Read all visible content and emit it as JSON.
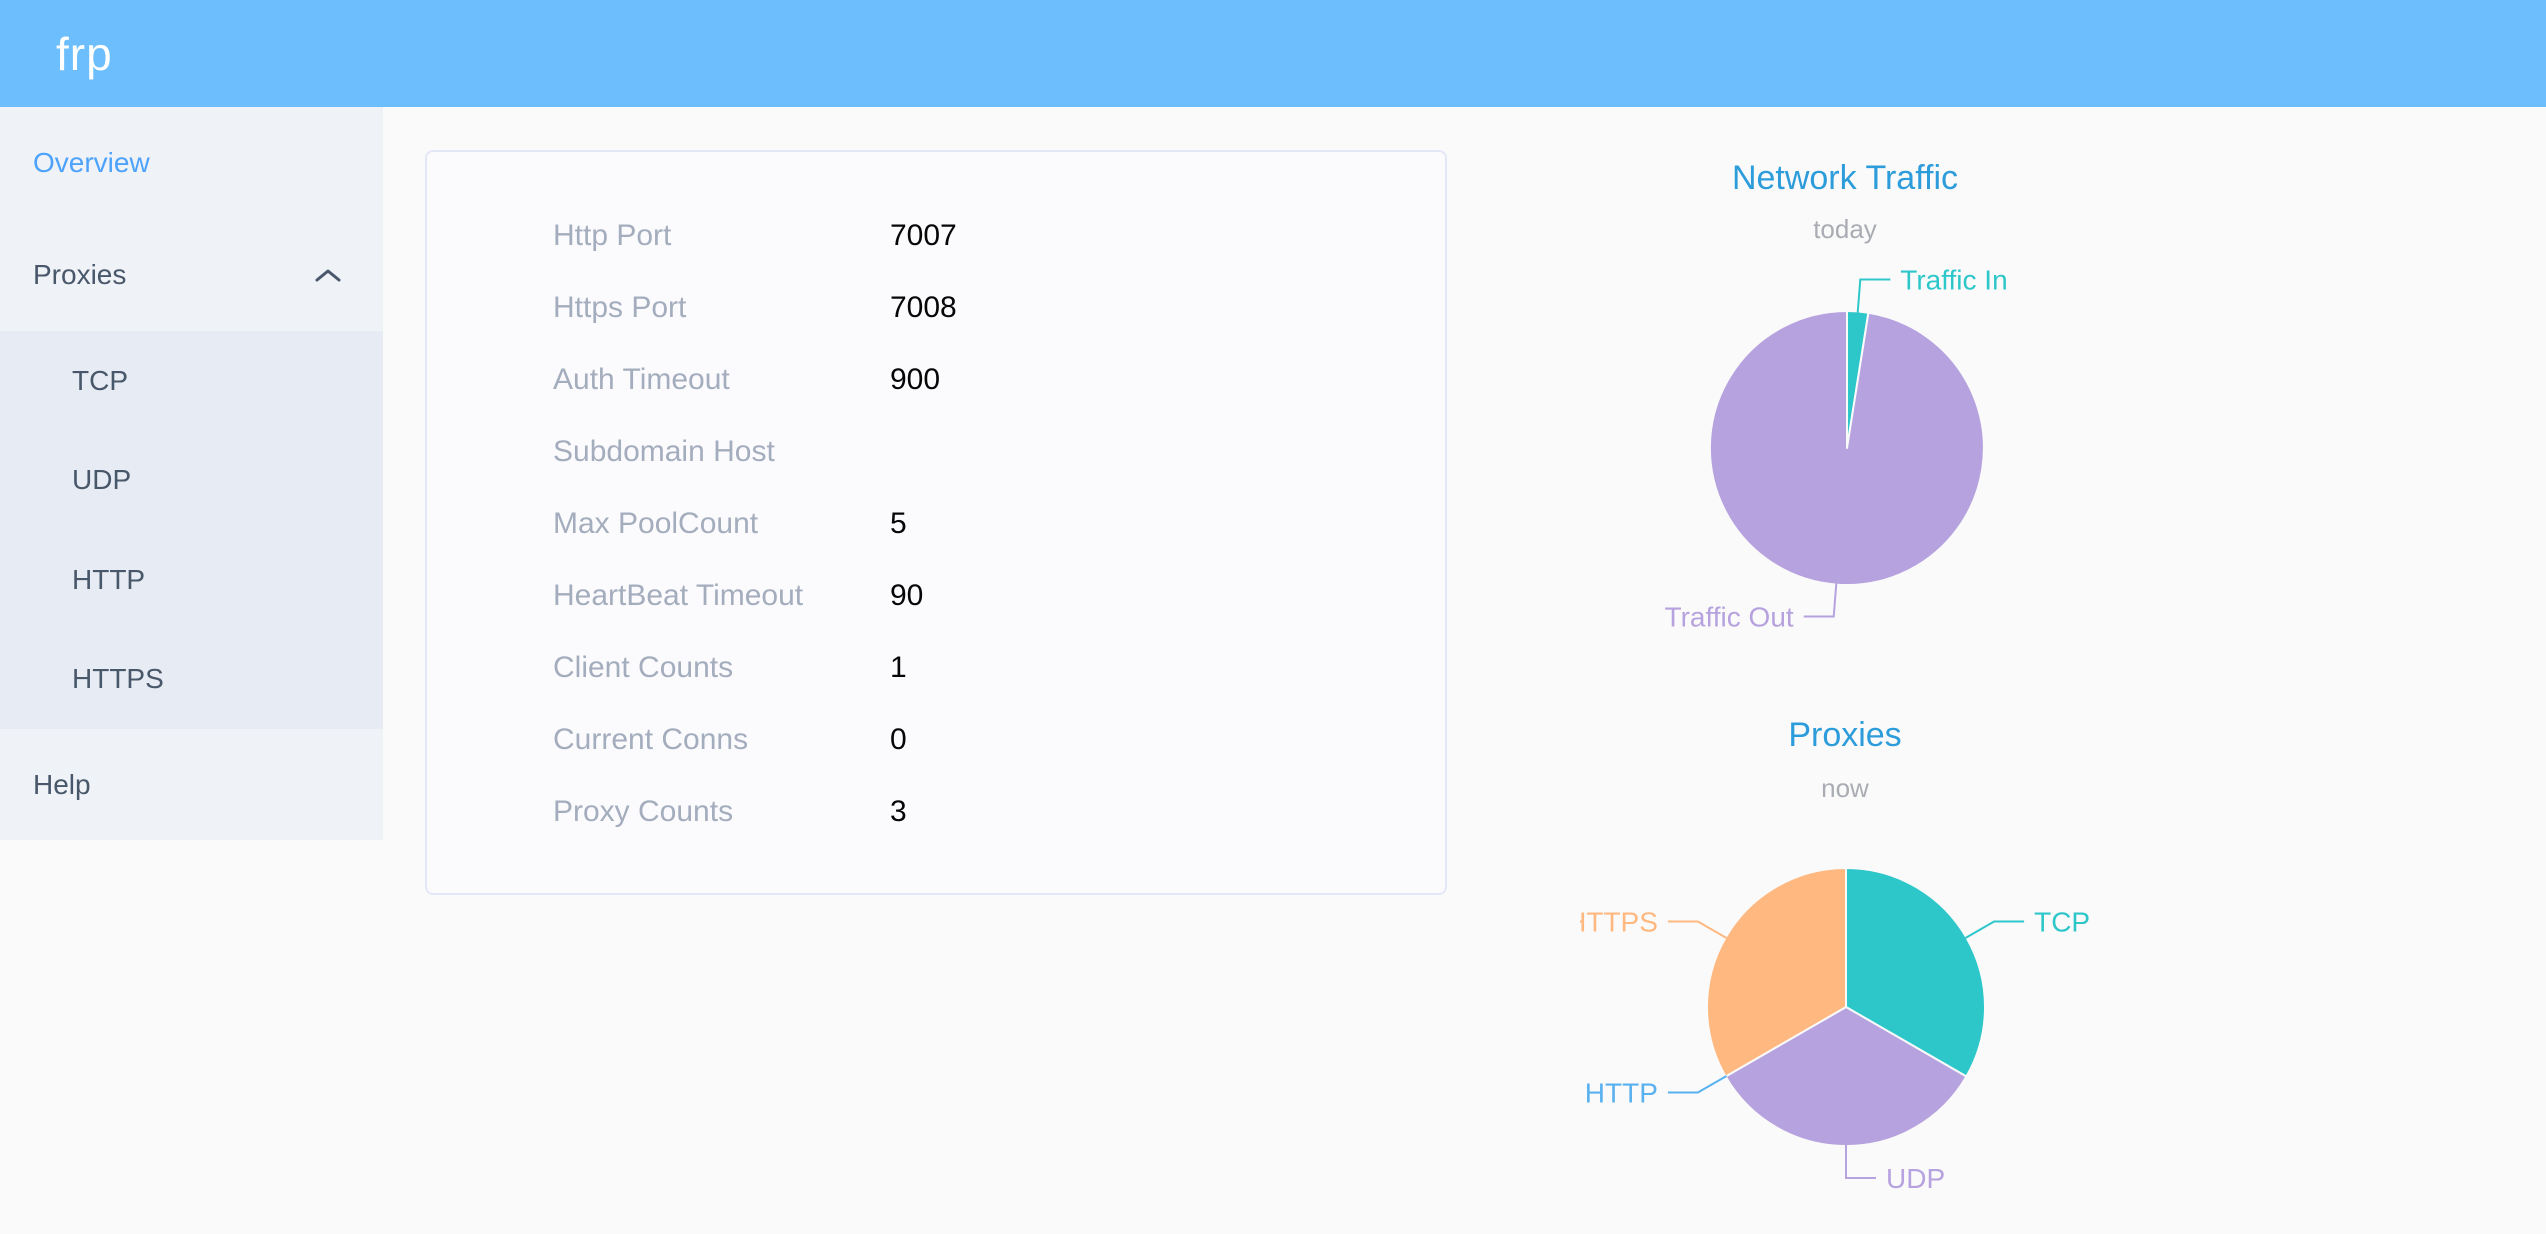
{
  "header": {
    "logo_text": "frp"
  },
  "sidebar": {
    "items": [
      {
        "label": "Overview",
        "active": true
      },
      {
        "label": "Proxies",
        "expanded": true,
        "children": [
          {
            "label": "TCP"
          },
          {
            "label": "UDP"
          },
          {
            "label": "HTTP"
          },
          {
            "label": "HTTPS"
          }
        ]
      },
      {
        "label": "Help"
      }
    ]
  },
  "overview_panel": {
    "rows": [
      {
        "label": "Http Port",
        "value": "7007"
      },
      {
        "label": "Https Port",
        "value": "7008"
      },
      {
        "label": "Auth Timeout",
        "value": "900"
      },
      {
        "label": "Subdomain Host",
        "value": ""
      },
      {
        "label": "Max PoolCount",
        "value": "5"
      },
      {
        "label": "HeartBeat Timeout",
        "value": "90"
      },
      {
        "label": "Client Counts",
        "value": "1"
      },
      {
        "label": "Current Conns",
        "value": "0"
      },
      {
        "label": "Proxy Counts",
        "value": "3"
      }
    ]
  },
  "chart_data": [
    {
      "type": "pie",
      "title": "Network Traffic",
      "subtitle": "today",
      "legend_position": "outside-labels",
      "values_are": "percent-estimated-from-slice-angles",
      "slices": [
        {
          "name": "Traffic In",
          "value": 2.5,
          "color": "#2ec7c9"
        },
        {
          "name": "Traffic Out",
          "value": 97.5,
          "color": "#b6a2de"
        }
      ]
    },
    {
      "type": "pie",
      "title": "Proxies",
      "subtitle": "now",
      "legend_position": "outside-labels",
      "values_are": "count",
      "slices": [
        {
          "name": "TCP",
          "value": 1,
          "color": "#2ec7c9"
        },
        {
          "name": "UDP",
          "value": 1,
          "color": "#b6a2de"
        },
        {
          "name": "HTTP",
          "value": 0,
          "color": "#5ab1ef"
        },
        {
          "name": "HTTPS",
          "value": 1,
          "color": "#ffb980"
        }
      ]
    }
  ],
  "colors": {
    "header_bg": "#6cbefc",
    "sidebar_bg": "#eff2f7",
    "submenu_bg": "#e7ebf3",
    "page_bg": "#fafafb",
    "card_border": "#e3e8f6",
    "menu_text": "#48576a",
    "active_menu_text": "#4da3fc",
    "panel_label_gray": "#a4adbd",
    "chart_title_blue": "#2d9cdb",
    "chart_subtitle_gray": "#a9acb2"
  }
}
